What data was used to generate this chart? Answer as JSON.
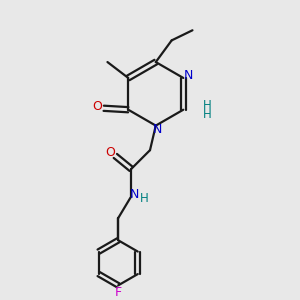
{
  "bg_color": "#e8e8e8",
  "bond_color": "#1a1a1a",
  "N_color": "#0000cc",
  "O_color": "#cc0000",
  "F_color": "#cc00cc",
  "NH_color": "#008080",
  "figsize": [
    3.0,
    3.0
  ],
  "dpi": 100,
  "xlim": [
    0,
    10
  ],
  "ylim": [
    0,
    10
  ]
}
